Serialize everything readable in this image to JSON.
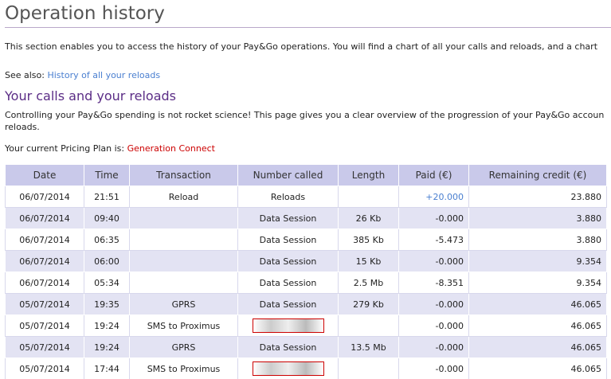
{
  "header": {
    "title": "Operation history"
  },
  "intro": "This section enables you to access the history of your Pay&Go operations. You will find a chart of all your calls and reloads, and a chart",
  "see_also": {
    "label": "See also:",
    "link": "History of all your reloads"
  },
  "section": {
    "title": "Your calls and your reloads",
    "text_lines": [
      "Controlling your Pay&Go spending is not rocket science! This page gives you a clear overview of the progression of your Pay&Go accoun",
      "reloads."
    ],
    "plan_label": "Your current Pricing Plan is:",
    "plan_name": "Generation Connect"
  },
  "table": {
    "columns": [
      "Date",
      "Time",
      "Transaction",
      "Number called",
      "Length",
      "Paid (€)",
      "Remaining credit (€)"
    ],
    "rows": [
      [
        "06/07/2014",
        "21:51",
        "Reload",
        "Reloads",
        null,
        "+20.000",
        "23.880"
      ],
      [
        "06/07/2014",
        "09:40",
        null,
        "Data Session",
        "26 Kb",
        "-0.000",
        "3.880"
      ],
      [
        "06/07/2014",
        "06:35",
        null,
        "Data Session",
        "385 Kb",
        "-5.473",
        "3.880"
      ],
      [
        "06/07/2014",
        "06:00",
        null,
        "Data Session",
        "15 Kb",
        "-0.000",
        "9.354"
      ],
      [
        "06/07/2014",
        "05:34",
        null,
        "Data Session",
        "2.5 Mb",
        "-8.351",
        "9.354"
      ],
      [
        "05/07/2014",
        "19:35",
        "GPRS",
        "Data Session",
        "279 Kb",
        "-0.000",
        "46.065"
      ],
      [
        "05/07/2014",
        "19:24",
        "SMS to Proximus",
        null,
        null,
        "-0.000",
        "46.065"
      ],
      [
        "05/07/2014",
        "19:24",
        "GPRS",
        "Data Session",
        "13.5 Mb",
        "-0.000",
        "46.065"
      ],
      [
        "05/07/2014",
        "17:44",
        "SMS to Proximus",
        null,
        null,
        "-0.000",
        "46.065"
      ]
    ]
  }
}
